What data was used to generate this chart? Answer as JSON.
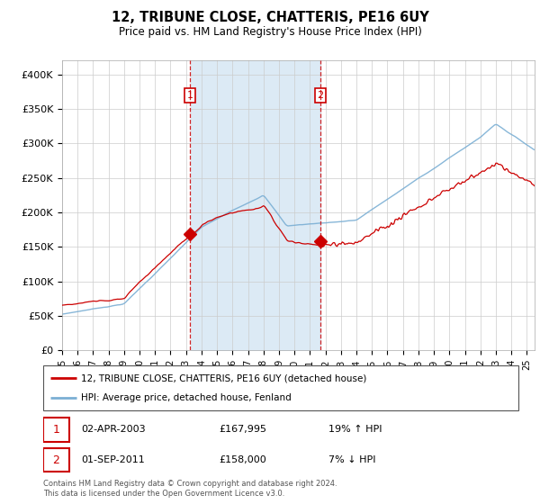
{
  "title": "12, TRIBUNE CLOSE, CHATTERIS, PE16 6UY",
  "subtitle": "Price paid vs. HM Land Registry's House Price Index (HPI)",
  "ylabel_ticks": [
    0,
    50000,
    100000,
    150000,
    200000,
    250000,
    300000,
    350000,
    400000
  ],
  "ylabel_labels": [
    "£0",
    "£50K",
    "£100K",
    "£150K",
    "£200K",
    "£250K",
    "£300K",
    "£350K",
    "£400K"
  ],
  "sale1_date": 2003.25,
  "sale1_price": 167995,
  "sale2_date": 2011.67,
  "sale2_price": 158000,
  "legend_line1": "12, TRIBUNE CLOSE, CHATTERIS, PE16 6UY (detached house)",
  "legend_line2": "HPI: Average price, detached house, Fenland",
  "ann1_date": "02-APR-2003",
  "ann1_price": "£167,995",
  "ann1_hpi": "19% ↑ HPI",
  "ann2_date": "01-SEP-2011",
  "ann2_price": "£158,000",
  "ann2_hpi": "7% ↓ HPI",
  "footnote": "Contains HM Land Registry data © Crown copyright and database right 2024.\nThis data is licensed under the Open Government Licence v3.0.",
  "red_color": "#cc0000",
  "blue_color": "#7bafd4",
  "shade_color": "#dceaf5",
  "background_color": "#ffffff",
  "grid_color": "#cccccc",
  "xmin": 1995.0,
  "xmax": 2025.5,
  "ymin": 0,
  "ymax": 420000
}
